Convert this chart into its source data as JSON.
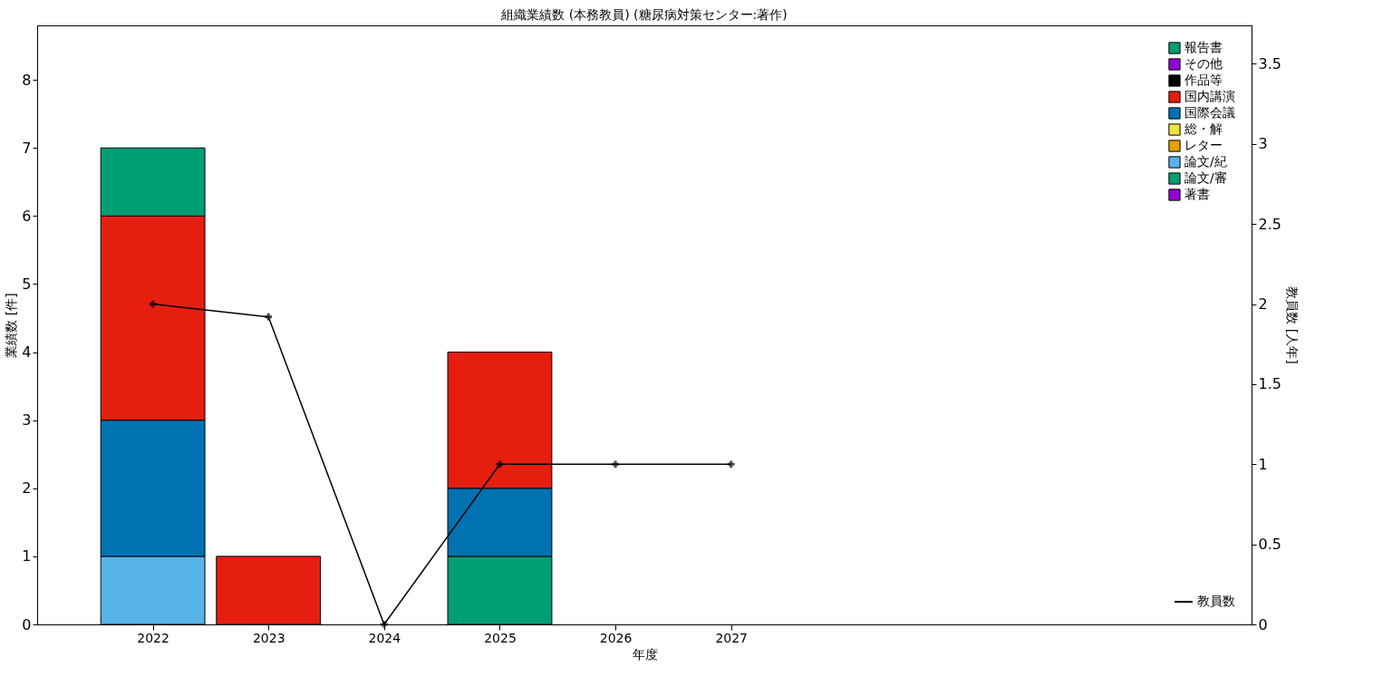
{
  "chart_data": {
    "type": "bar",
    "title": "組織業績数 (本務教員) (糖尿病対策センター:著作)",
    "xlabel": "年度",
    "ylabel": "業績数 [件]",
    "y2label": "教員数 [人年]",
    "categories": [
      "2022",
      "2023",
      "2024",
      "2025",
      "2026",
      "2027",
      null,
      null,
      null,
      null
    ],
    "stacked": true,
    "ylim": [
      0,
      8.8
    ],
    "yticks": [
      0,
      1,
      2,
      3,
      4,
      5,
      6,
      7,
      8
    ],
    "y2lim": [
      0,
      3.74
    ],
    "y2ticks": [
      0,
      0.5,
      1,
      1.5,
      2,
      2.5,
      3,
      3.5
    ],
    "grid": false,
    "legend": "top right",
    "series": [
      {
        "name": "著書",
        "color": "#9400d3",
        "values": [
          0,
          0,
          0,
          0,
          0,
          0,
          0,
          0,
          0,
          0
        ]
      },
      {
        "name": "論文/審",
        "color": "#009e73",
        "values": [
          0,
          0,
          0,
          1,
          0,
          0,
          0,
          0,
          0,
          0
        ]
      },
      {
        "name": "論文/紀",
        "color": "#56b4e9",
        "values": [
          1,
          0,
          0,
          0,
          0,
          0,
          0,
          0,
          0,
          0
        ]
      },
      {
        "name": "レター",
        "color": "#e69f00",
        "values": [
          0,
          0,
          0,
          0,
          0,
          0,
          0,
          0,
          0,
          0
        ]
      },
      {
        "name": "総・解",
        "color": "#f0e442",
        "values": [
          0,
          0,
          0,
          0,
          0,
          0,
          0,
          0,
          0,
          0
        ]
      },
      {
        "name": "国際会議",
        "color": "#0072b2",
        "values": [
          2,
          0,
          0,
          1,
          0,
          0,
          0,
          0,
          0,
          0
        ]
      },
      {
        "name": "国内講演",
        "color": "#e51e10",
        "values": [
          3,
          1,
          0,
          2,
          0,
          0,
          0,
          0,
          0,
          0
        ]
      },
      {
        "name": "作品等",
        "color": "#000000",
        "values": [
          0,
          0,
          0,
          0,
          0,
          0,
          0,
          0,
          0,
          0
        ]
      },
      {
        "name": "その他",
        "color": "#9400d3",
        "values": [
          0,
          0,
          0,
          0,
          0,
          0,
          0,
          0,
          0,
          0
        ]
      },
      {
        "name": "報告書",
        "color": "#009e73",
        "values": [
          1,
          0,
          0,
          0,
          0,
          0,
          0,
          0,
          0,
          0
        ]
      },
      {
        "name": "教員数",
        "type": "line",
        "axis": "y2",
        "color": "#000000",
        "marker": "cross",
        "line_style": "solid",
        "values": [
          2,
          1.92,
          0,
          1,
          1,
          1,
          null,
          null,
          null,
          null
        ]
      }
    ]
  }
}
